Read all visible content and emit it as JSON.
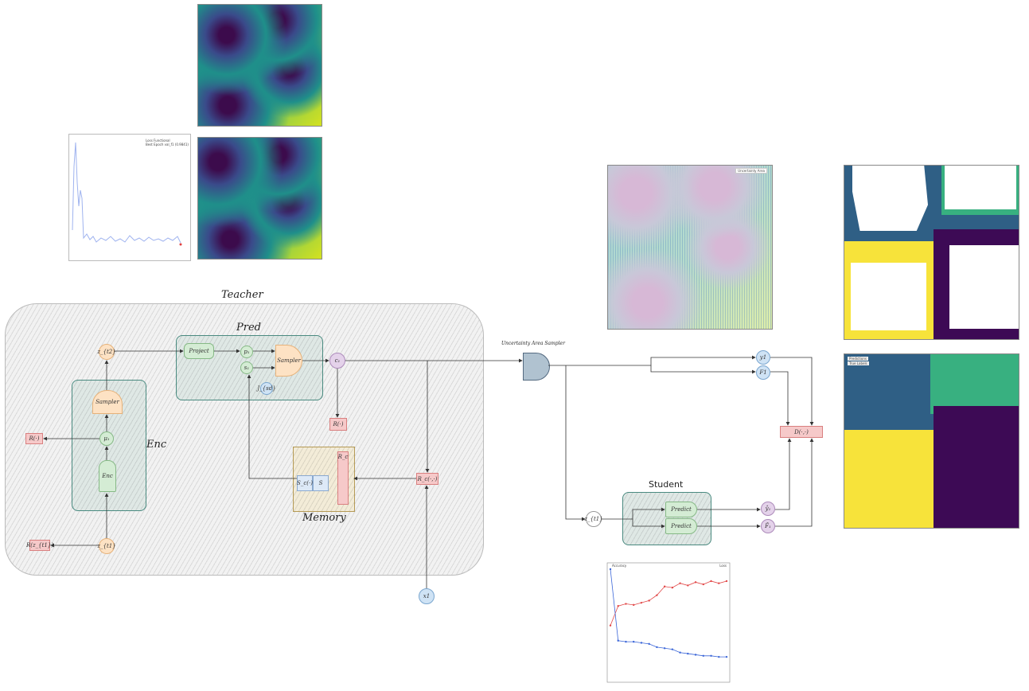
{
  "teacher": {
    "title": "Teacher",
    "pred_title": "Pred",
    "enc_title": "Enc",
    "memory_title": "Memory",
    "nodes": {
      "z_t2": "z_{t2}",
      "z_t1": "z_{t1}",
      "mu1": "μ₁",
      "p1": "p₁",
      "s1": "s₁",
      "c1": "c₁",
      "jsd": "J_{sd}"
    },
    "boxes": {
      "sampler_enc": "Sampler",
      "enc": "Enc",
      "project": "Project",
      "sampler_pred": "Sampler",
      "r_mu": "R(·)",
      "r_zt1": "R(z_{t1})",
      "r_c": "R(·)",
      "r_c_mem": "R_c(·,·)",
      "mem_s": "S",
      "mem_s_fn": "S_c(·)",
      "mem_r": "R_c"
    }
  },
  "sampler_label": "Uncertainty Area Sampler",
  "student": {
    "title": "Student",
    "input": "z_{t1}",
    "predict_top": "Predict",
    "predict_bottom": "Predict",
    "out_y": "ŷ₁",
    "out_f": "F̂₁",
    "yl": "y1",
    "fl": "F1",
    "dist": "D(·,·)",
    "x1": "x1"
  },
  "plots": {
    "loss_legend_1": "Loss Functional",
    "loss_legend_2": "Best Epoch val_f1 (0.9841)",
    "uncertainty_legend": "Uncertainty Area",
    "pred_legend_1": "Predictions",
    "pred_legend_2": "True Labels",
    "acc_legend_1": "Accuracy",
    "acc_legend_2": "Loss"
  },
  "chart_data": [
    {
      "type": "line",
      "series": [
        {
          "name": "Accuracy",
          "color": "#e24a4a",
          "values": [
            0.48,
            0.66,
            0.68,
            0.67,
            0.69,
            0.71,
            0.76,
            0.84,
            0.83,
            0.87,
            0.85,
            0.88,
            0.86,
            0.89,
            0.87,
            0.89
          ]
        },
        {
          "name": "Loss",
          "color": "#3b66d8",
          "values": [
            1.0,
            0.34,
            0.33,
            0.33,
            0.32,
            0.31,
            0.28,
            0.27,
            0.26,
            0.23,
            0.22,
            0.21,
            0.2,
            0.2,
            0.19,
            0.19
          ]
        }
      ],
      "x": [
        0,
        100,
        200,
        300,
        400,
        500,
        600,
        700,
        800,
        900,
        1000,
        1100,
        1200,
        1300,
        1400,
        1500
      ]
    }
  ]
}
